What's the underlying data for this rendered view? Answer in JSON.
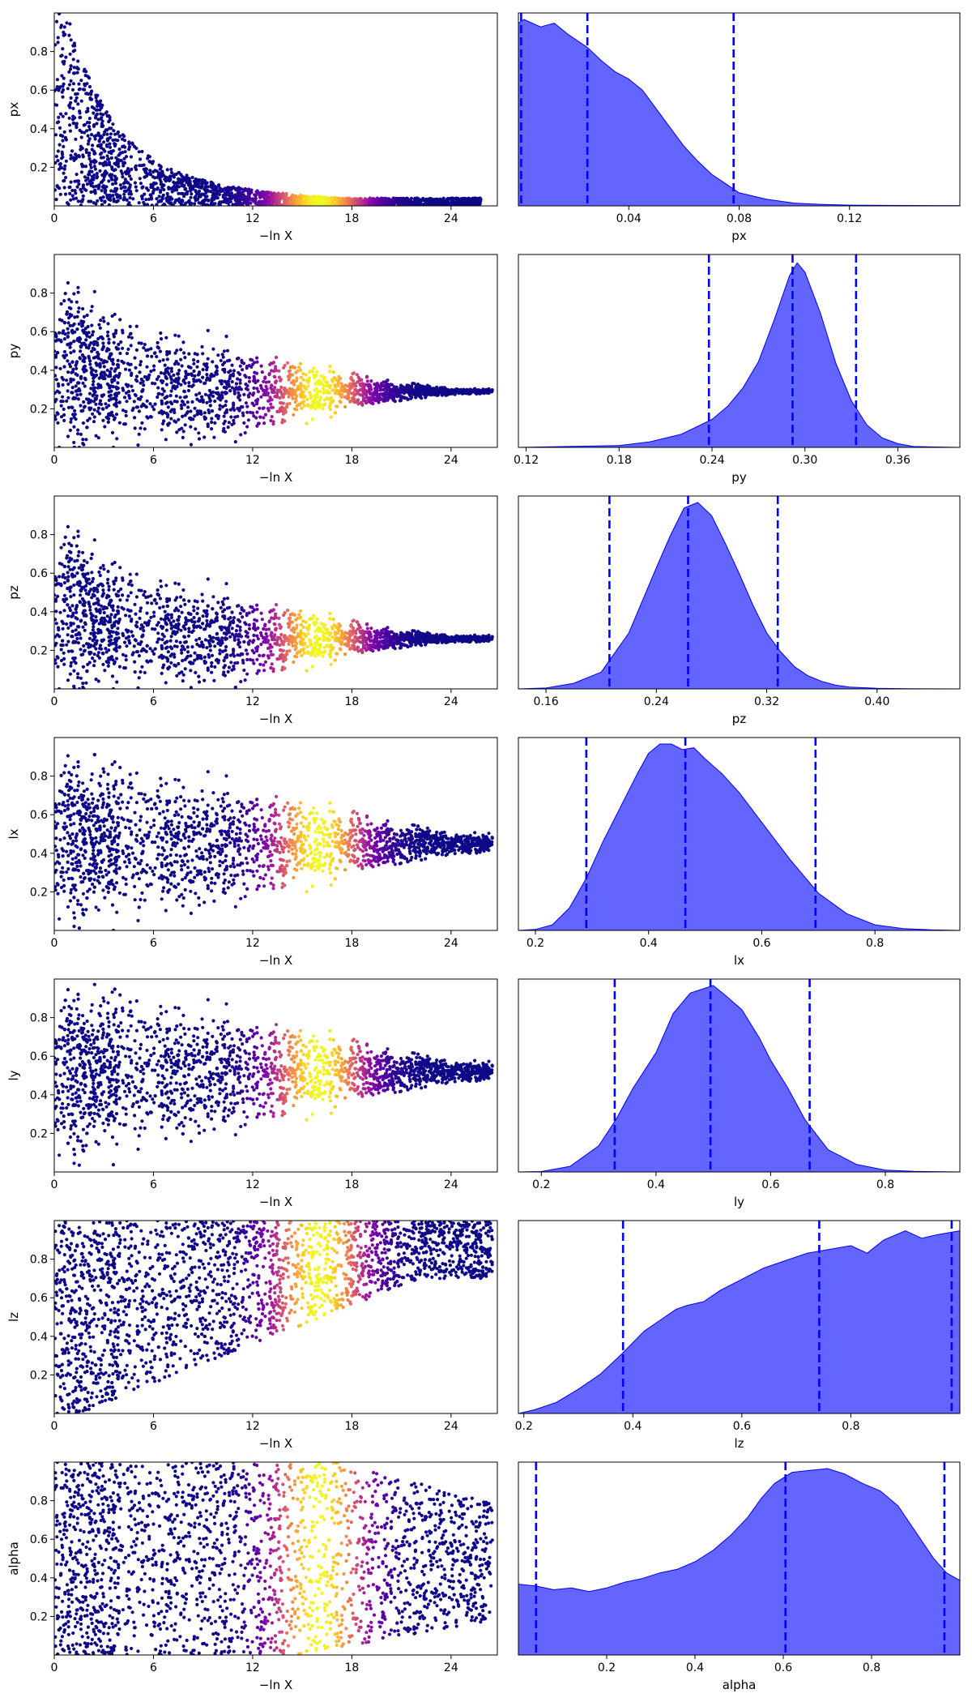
{
  "colors": {
    "kde_fill": "#6464ff",
    "kde_line": "#0000ff",
    "quantile_line": "#0000ff",
    "cmap": [
      "#0d0887",
      "#41049d",
      "#6a00a8",
      "#8f0da4",
      "#b12a90",
      "#cc4778",
      "#e16462",
      "#f2844b",
      "#fca636",
      "#fcce25",
      "#f0f921"
    ]
  },
  "chart_data": [
    {
      "type": "scatter",
      "param": "px",
      "xlabel": "−ln X",
      "ylabel": "px",
      "xlim": [
        0,
        26.8
      ],
      "ylim": [
        0,
        1
      ],
      "xticks": [
        "0",
        "6",
        "12",
        "18",
        "24"
      ],
      "yticks": [
        "0.2",
        "0.4",
        "0.6",
        "0.8"
      ],
      "envelope": "decay",
      "center": 0.02,
      "center_spread": 0.02,
      "max_depth": 25.8,
      "colormap": "plasma",
      "colormap_peak": 16
    },
    {
      "type": "area",
      "param": "px",
      "xlabel": "px",
      "xlim": [
        0,
        0.16
      ],
      "xticks": [
        "0.04",
        "0.08",
        "0.12"
      ],
      "density": {
        "x": [
          0,
          0.002,
          0.008,
          0.013,
          0.018,
          0.025,
          0.03,
          0.035,
          0.04,
          0.045,
          0.05,
          0.055,
          0.06,
          0.065,
          0.07,
          0.075,
          0.08,
          0.09,
          0.1,
          0.11,
          0.12,
          0.14,
          0.16
        ],
        "y": [
          0.98,
          1.0,
          0.96,
          0.98,
          0.92,
          0.85,
          0.78,
          0.72,
          0.68,
          0.62,
          0.52,
          0.42,
          0.32,
          0.24,
          0.17,
          0.12,
          0.07,
          0.035,
          0.015,
          0.008,
          0.004,
          0.002,
          0.001
        ]
      },
      "quantiles": [
        0.001,
        0.025,
        0.078
      ]
    },
    {
      "type": "scatter",
      "param": "py",
      "xlabel": "−ln X",
      "ylabel": "py",
      "xlim": [
        0,
        26.8
      ],
      "ylim": [
        0,
        1
      ],
      "xticks": [
        "0",
        "6",
        "12",
        "18",
        "24"
      ],
      "yticks": [
        "0.2",
        "0.4",
        "0.6",
        "0.8"
      ],
      "envelope": "converge",
      "center": 0.29,
      "center_spread": 0.015,
      "max_depth": 26.5,
      "colormap": "plasma",
      "colormap_peak": 16
    },
    {
      "type": "area",
      "param": "py",
      "xlabel": "py",
      "xlim": [
        0.115,
        0.4
      ],
      "xticks": [
        "0.12",
        "0.18",
        "0.24",
        "0.30",
        "0.36"
      ],
      "density": {
        "x": [
          0.115,
          0.18,
          0.2,
          0.22,
          0.24,
          0.25,
          0.26,
          0.27,
          0.28,
          0.29,
          0.295,
          0.3,
          0.31,
          0.32,
          0.33,
          0.34,
          0.35,
          0.36,
          0.37,
          0.4
        ],
        "y": [
          0,
          0.01,
          0.03,
          0.07,
          0.15,
          0.22,
          0.32,
          0.46,
          0.68,
          0.92,
          0.99,
          0.94,
          0.72,
          0.45,
          0.25,
          0.12,
          0.05,
          0.02,
          0.005,
          0
        ]
      },
      "quantiles": [
        0.238,
        0.292,
        0.333
      ]
    },
    {
      "type": "scatter",
      "param": "pz",
      "xlabel": "−ln X",
      "ylabel": "pz",
      "xlim": [
        0,
        26.8
      ],
      "ylim": [
        0,
        1
      ],
      "xticks": [
        "0",
        "6",
        "12",
        "18",
        "24"
      ],
      "yticks": [
        "0.2",
        "0.4",
        "0.6",
        "0.8"
      ],
      "envelope": "converge",
      "center": 0.26,
      "center_spread": 0.02,
      "max_depth": 26.5,
      "colormap": "plasma",
      "colormap_peak": 16
    },
    {
      "type": "area",
      "param": "pz",
      "xlabel": "pz",
      "xlim": [
        0.14,
        0.46
      ],
      "xticks": [
        "0.16",
        "0.24",
        "0.32",
        "0.40"
      ],
      "density": {
        "x": [
          0.14,
          0.16,
          0.18,
          0.2,
          0.22,
          0.24,
          0.25,
          0.26,
          0.27,
          0.28,
          0.29,
          0.3,
          0.31,
          0.32,
          0.33,
          0.34,
          0.35,
          0.36,
          0.37,
          0.38,
          0.4,
          0.42,
          0.46
        ],
        "y": [
          0,
          0.005,
          0.03,
          0.09,
          0.3,
          0.65,
          0.82,
          0.97,
          1.0,
          0.93,
          0.78,
          0.62,
          0.45,
          0.3,
          0.2,
          0.12,
          0.07,
          0.04,
          0.02,
          0.01,
          0.003,
          0.001,
          0
        ]
      },
      "quantiles": [
        0.206,
        0.263,
        0.328
      ]
    },
    {
      "type": "scatter",
      "param": "lx",
      "xlabel": "−ln X",
      "ylabel": "lx",
      "xlim": [
        0,
        26.8
      ],
      "ylim": [
        0,
        1
      ],
      "xticks": [
        "0",
        "6",
        "12",
        "18",
        "24"
      ],
      "yticks": [
        "0.2",
        "0.4",
        "0.6",
        "0.8"
      ],
      "envelope": "wide",
      "center": 0.45,
      "center_spread": 0.06,
      "max_depth": 26.5,
      "colormap": "plasma",
      "colormap_peak": 16
    },
    {
      "type": "area",
      "param": "lx",
      "xlabel": "lx",
      "xlim": [
        0.17,
        0.95
      ],
      "xticks": [
        "0.2",
        "0.4",
        "0.6",
        "0.8"
      ],
      "density": {
        "x": [
          0.17,
          0.2,
          0.23,
          0.26,
          0.29,
          0.32,
          0.35,
          0.38,
          0.4,
          0.42,
          0.44,
          0.46,
          0.48,
          0.5,
          0.53,
          0.56,
          0.6,
          0.65,
          0.7,
          0.75,
          0.8,
          0.85,
          0.9,
          0.95
        ],
        "y": [
          0,
          0.005,
          0.03,
          0.12,
          0.28,
          0.48,
          0.66,
          0.84,
          0.95,
          1.0,
          1.0,
          0.97,
          0.98,
          0.92,
          0.84,
          0.74,
          0.58,
          0.38,
          0.2,
          0.09,
          0.03,
          0.01,
          0.003,
          0
        ]
      },
      "quantiles": [
        0.29,
        0.465,
        0.695
      ]
    },
    {
      "type": "scatter",
      "param": "ly",
      "xlabel": "−ln X",
      "ylabel": "ly",
      "xlim": [
        0,
        26.8
      ],
      "ylim": [
        0,
        1
      ],
      "xticks": [
        "0",
        "6",
        "12",
        "18",
        "24"
      ],
      "yticks": [
        "0.2",
        "0.4",
        "0.6",
        "0.8"
      ],
      "envelope": "wide",
      "center": 0.52,
      "center_spread": 0.06,
      "max_depth": 26.5,
      "colormap": "plasma",
      "colormap_peak": 16
    },
    {
      "type": "area",
      "param": "ly",
      "xlabel": "ly",
      "xlim": [
        0.16,
        0.93
      ],
      "xticks": [
        "0.2",
        "0.4",
        "0.6",
        "0.8"
      ],
      "density": {
        "x": [
          0.16,
          0.2,
          0.25,
          0.3,
          0.33,
          0.36,
          0.4,
          0.43,
          0.46,
          0.48,
          0.5,
          0.52,
          0.55,
          0.58,
          0.6,
          0.63,
          0.66,
          0.7,
          0.75,
          0.8,
          0.85,
          0.93
        ],
        "y": [
          0,
          0.002,
          0.03,
          0.14,
          0.28,
          0.45,
          0.64,
          0.85,
          0.96,
          0.98,
          1.0,
          0.95,
          0.87,
          0.72,
          0.6,
          0.45,
          0.28,
          0.12,
          0.04,
          0.01,
          0.003,
          0
        ]
      },
      "quantiles": [
        0.328,
        0.495,
        0.668
      ]
    },
    {
      "type": "scatter",
      "param": "lz",
      "xlabel": "−ln X",
      "ylabel": "lz",
      "xlim": [
        0,
        26.8
      ],
      "ylim": [
        0,
        1
      ],
      "xticks": [
        "0",
        "6",
        "12",
        "18",
        "24"
      ],
      "yticks": [
        "0.2",
        "0.4",
        "0.6",
        "0.8"
      ],
      "envelope": "wide_high",
      "center": 0.8,
      "center_spread": 0.12,
      "max_depth": 26.5,
      "colormap": "plasma",
      "colormap_peak": 16
    },
    {
      "type": "area",
      "param": "lz",
      "xlabel": "lz",
      "xlim": [
        0.19,
        1.0
      ],
      "xticks": [
        "0.2",
        "0.4",
        "0.6",
        "0.8"
      ],
      "density": {
        "x": [
          0.19,
          0.22,
          0.26,
          0.3,
          0.34,
          0.38,
          0.42,
          0.45,
          0.48,
          0.5,
          0.53,
          0.56,
          0.6,
          0.64,
          0.68,
          0.72,
          0.76,
          0.8,
          0.83,
          0.86,
          0.9,
          0.93,
          0.96,
          1.0
        ],
        "y": [
          0,
          0.02,
          0.06,
          0.13,
          0.21,
          0.32,
          0.44,
          0.5,
          0.56,
          0.58,
          0.6,
          0.66,
          0.72,
          0.78,
          0.82,
          0.86,
          0.88,
          0.9,
          0.86,
          0.93,
          0.98,
          0.94,
          0.96,
          0.98
        ]
      },
      "quantiles": [
        0.382,
        0.742,
        0.985
      ]
    },
    {
      "type": "scatter",
      "param": "alpha",
      "xlabel": "−ln X",
      "ylabel": "alpha",
      "xlim": [
        0,
        26.8
      ],
      "ylim": [
        0,
        1
      ],
      "xticks": [
        "0",
        "6",
        "12",
        "18",
        "24"
      ],
      "yticks": [
        "0.2",
        "0.4",
        "0.6",
        "0.8"
      ],
      "envelope": "band",
      "center": 0.5,
      "center_spread": 0.35,
      "max_depth": 26.5,
      "colormap": "plasma",
      "colormap_peak": 16
    },
    {
      "type": "area",
      "param": "alpha",
      "xlabel": "alpha",
      "xlim": [
        0,
        1.0
      ],
      "xticks": [
        "0.2",
        "0.4",
        "0.6",
        "0.8"
      ],
      "density": {
        "x": [
          0,
          0.04,
          0.08,
          0.12,
          0.16,
          0.2,
          0.24,
          0.28,
          0.32,
          0.36,
          0.4,
          0.44,
          0.48,
          0.52,
          0.55,
          0.58,
          0.62,
          0.66,
          0.7,
          0.74,
          0.78,
          0.82,
          0.86,
          0.9,
          0.94,
          0.97,
          1.0
        ],
        "y": [
          0.38,
          0.37,
          0.35,
          0.36,
          0.34,
          0.36,
          0.39,
          0.41,
          0.44,
          0.46,
          0.5,
          0.56,
          0.64,
          0.74,
          0.84,
          0.92,
          0.98,
          0.99,
          1.0,
          0.97,
          0.92,
          0.88,
          0.8,
          0.66,
          0.52,
          0.44,
          0.4
        ]
      },
      "quantiles": [
        0.04,
        0.605,
        0.965
      ]
    }
  ]
}
